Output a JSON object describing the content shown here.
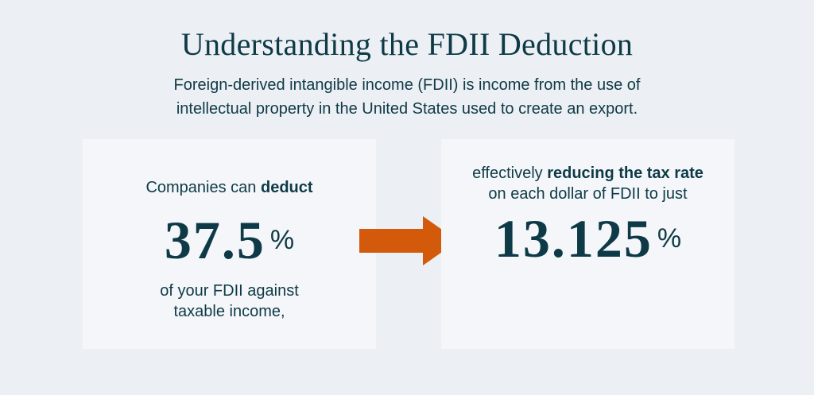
{
  "header": {
    "title": "Understanding the FDII Deduction",
    "subtitle_line1": "Foreign-derived intangible income (FDII) is income from the use of",
    "subtitle_line2": "intellectual property in the United States used to create an export."
  },
  "left_card": {
    "intro_text": "Companies can ",
    "intro_bold": "deduct",
    "value": "37.5",
    "unit": "%",
    "outro_line1": "of your FDII against",
    "outro_line2": "taxable income,"
  },
  "right_card": {
    "intro_text": "effectively ",
    "intro_bold": "reducing the tax rate",
    "intro_line2": "on each dollar of FDII to just",
    "value": "13.125",
    "unit": "%"
  },
  "colors": {
    "text": "#0e3a47",
    "background": "#eceff3",
    "card": "#f4f6f9",
    "arrow": "#d35a0b"
  },
  "icons": {
    "arrow": "arrow-right-icon"
  }
}
